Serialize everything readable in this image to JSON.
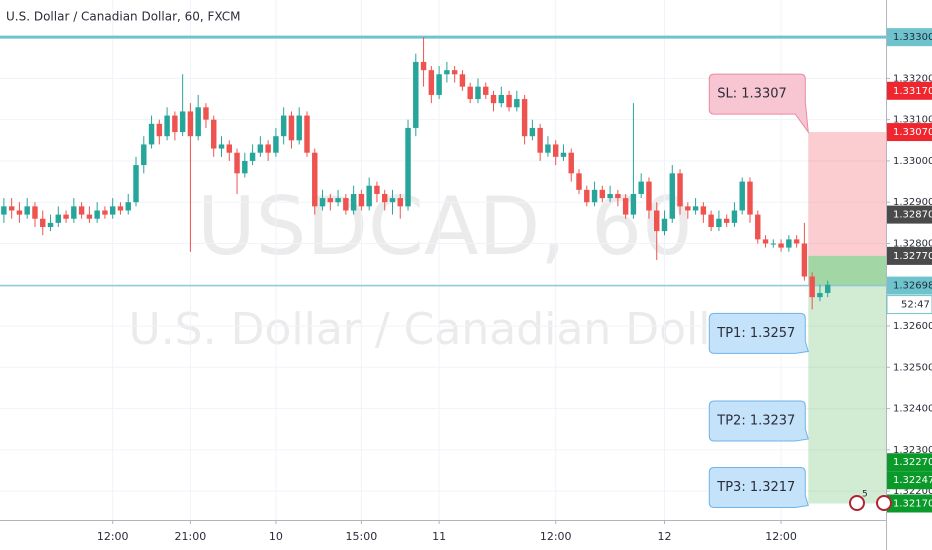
{
  "chart_data": {
    "type": "candlestick",
    "title": "U.S. Dollar / Canadian Dollar, 60, FXCM",
    "watermark": "USDCAD, 60",
    "watermark_subtitle": "U.S. Dollar / Canadian Dollar",
    "up_color": "#26a69a",
    "down_color": "#ef5350",
    "grid": true,
    "xlim": [
      -0.5,
      113.5
    ],
    "ylim": [
      1.3213,
      1.3339
    ],
    "xticks": [
      {
        "value": 14,
        "label": "12:00"
      },
      {
        "value": 24,
        "label": "21:00"
      },
      {
        "value": 35,
        "label": "10"
      },
      {
        "value": 46,
        "label": "15:00"
      },
      {
        "value": 56,
        "label": "11"
      },
      {
        "value": 71,
        "label": "12:00"
      },
      {
        "value": 85,
        "label": "12"
      },
      {
        "value": 100,
        "label": "12:00"
      }
    ],
    "yticks": [
      {
        "value": 1.333,
        "label": "1.33300"
      },
      {
        "value": 1.332,
        "label": "1.33200"
      },
      {
        "value": 1.331,
        "label": "1.33100"
      },
      {
        "value": 1.33,
        "label": "1.33000"
      },
      {
        "value": 1.329,
        "label": "1.32900"
      },
      {
        "value": 1.328,
        "label": "1.32800"
      },
      {
        "value": 1.327,
        "label": "1.32700"
      },
      {
        "value": 1.326,
        "label": "1.32600"
      },
      {
        "value": 1.325,
        "label": "1.32500"
      },
      {
        "value": 1.324,
        "label": "1.32400"
      },
      {
        "value": 1.323,
        "label": "1.32300"
      },
      {
        "value": 1.322,
        "label": "1.32200"
      }
    ],
    "open": [
      1.3287,
      1.3289,
      1.3288,
      1.3287,
      1.3289,
      1.3286,
      1.3284,
      1.3285,
      1.3287,
      1.3286,
      1.3289,
      1.3287,
      1.3286,
      1.3288,
      1.3287,
      1.3289,
      1.3288,
      1.329,
      1.3299,
      1.3304,
      1.3309,
      1.3306,
      1.3311,
      1.3307,
      1.3312,
      1.3306,
      1.3313,
      1.331,
      1.3303,
      1.3304,
      1.3302,
      1.3297,
      1.33,
      1.3302,
      1.3304,
      1.3302,
      1.3306,
      1.3311,
      1.3305,
      1.3311,
      1.3302,
      1.3289,
      1.3291,
      1.329,
      1.3291,
      1.3288,
      1.3292,
      1.3289,
      1.3294,
      1.3292,
      1.329,
      1.3291,
      1.3289,
      1.3308,
      1.3324,
      1.3322,
      1.3316,
      1.3321,
      1.3322,
      1.3321,
      1.3318,
      1.3315,
      1.3318,
      1.3316,
      1.3314,
      1.3316,
      1.3313,
      1.3315,
      1.3306,
      1.3308,
      1.3302,
      1.3304,
      1.3301,
      1.3302,
      1.3297,
      1.3293,
      1.329,
      1.3293,
      1.3291,
      1.3292,
      1.3291,
      1.3287,
      1.3292,
      1.3295,
      1.3288,
      1.3283,
      1.3286,
      1.3297,
      1.3289,
      1.3288,
      1.3289,
      1.3287,
      1.3284,
      1.3286,
      1.3285,
      1.3288,
      1.3295,
      1.3287,
      1.3281,
      1.328,
      1.328,
      1.3279,
      1.3281,
      1.328,
      1.3272,
      1.3267,
      1.3268
    ],
    "high": [
      1.3291,
      1.3291,
      1.329,
      1.3291,
      1.329,
      1.3288,
      1.3287,
      1.3289,
      1.3288,
      1.3291,
      1.329,
      1.3289,
      1.329,
      1.3289,
      1.3291,
      1.329,
      1.3292,
      1.3301,
      1.3306,
      1.3311,
      1.331,
      1.3313,
      1.3312,
      1.3321,
      1.3314,
      1.3316,
      1.3314,
      1.3311,
      1.3306,
      1.3305,
      1.3303,
      1.3302,
      1.3304,
      1.3306,
      1.3305,
      1.3308,
      1.3313,
      1.3312,
      1.3313,
      1.3312,
      1.3303,
      1.3293,
      1.3292,
      1.3293,
      1.3292,
      1.3294,
      1.3293,
      1.3296,
      1.3295,
      1.3293,
      1.3293,
      1.3292,
      1.331,
      1.3326,
      1.333,
      1.3323,
      1.3323,
      1.3324,
      1.3323,
      1.3322,
      1.3319,
      1.332,
      1.3319,
      1.3317,
      1.3318,
      1.3317,
      1.3317,
      1.3316,
      1.331,
      1.3309,
      1.3306,
      1.3305,
      1.3304,
      1.3303,
      1.3298,
      1.3294,
      1.3295,
      1.3294,
      1.3294,
      1.3293,
      1.3292,
      1.3314,
      1.3297,
      1.3296,
      1.329,
      1.3288,
      1.3299,
      1.3298,
      1.329,
      1.3291,
      1.329,
      1.3288,
      1.3288,
      1.3287,
      1.329,
      1.3296,
      1.3296,
      1.3288,
      1.3282,
      1.3281,
      1.3281,
      1.3282,
      1.3282,
      1.3285,
      1.3273,
      1.327,
      1.3271
    ],
    "low": [
      1.3285,
      1.3286,
      1.3285,
      1.3286,
      1.3284,
      1.3282,
      1.3283,
      1.3284,
      1.3285,
      1.3285,
      1.3286,
      1.3285,
      1.3285,
      1.3286,
      1.3286,
      1.3287,
      1.3287,
      1.3289,
      1.3297,
      1.3303,
      1.3304,
      1.3305,
      1.3305,
      1.3306,
      1.3278,
      1.3305,
      1.3308,
      1.3301,
      1.3301,
      1.33,
      1.3292,
      1.3296,
      1.3299,
      1.3301,
      1.33,
      1.3301,
      1.3304,
      1.3303,
      1.3304,
      1.3301,
      1.3287,
      1.3288,
      1.3288,
      1.3289,
      1.3287,
      1.3287,
      1.3288,
      1.3288,
      1.329,
      1.3288,
      1.3287,
      1.3286,
      1.3288,
      1.3306,
      1.3318,
      1.3314,
      1.3315,
      1.3319,
      1.3319,
      1.3317,
      1.3314,
      1.3314,
      1.3315,
      1.3312,
      1.3313,
      1.3312,
      1.3312,
      1.3304,
      1.3305,
      1.33,
      1.3301,
      1.3299,
      1.33,
      1.3295,
      1.3292,
      1.3289,
      1.3289,
      1.329,
      1.329,
      1.3289,
      1.3286,
      1.3286,
      1.3291,
      1.3286,
      1.3276,
      1.3282,
      1.3285,
      1.3287,
      1.3286,
      1.3287,
      1.3285,
      1.3283,
      1.3283,
      1.3284,
      1.3284,
      1.3287,
      1.3285,
      1.328,
      1.3279,
      1.3279,
      1.3278,
      1.3278,
      1.3279,
      1.3271,
      1.3264,
      1.3266,
      1.3267
    ],
    "close": [
      1.3289,
      1.3288,
      1.3287,
      1.3289,
      1.3286,
      1.3284,
      1.3285,
      1.3287,
      1.3286,
      1.3289,
      1.3287,
      1.3286,
      1.3288,
      1.3287,
      1.3289,
      1.3288,
      1.329,
      1.3299,
      1.3304,
      1.3309,
      1.3306,
      1.3311,
      1.3307,
      1.3312,
      1.3306,
      1.3313,
      1.331,
      1.3303,
      1.3304,
      1.3302,
      1.3297,
      1.33,
      1.3302,
      1.3304,
      1.3302,
      1.3306,
      1.3311,
      1.3305,
      1.3311,
      1.3302,
      1.3289,
      1.3291,
      1.329,
      1.3291,
      1.3288,
      1.3292,
      1.3289,
      1.3294,
      1.3292,
      1.329,
      1.3291,
      1.3289,
      1.3308,
      1.3324,
      1.3322,
      1.3316,
      1.3321,
      1.3322,
      1.3321,
      1.3318,
      1.3315,
      1.3318,
      1.3316,
      1.3314,
      1.3316,
      1.3313,
      1.3315,
      1.3306,
      1.3308,
      1.3302,
      1.3304,
      1.3301,
      1.3302,
      1.3297,
      1.3293,
      1.329,
      1.3293,
      1.3291,
      1.3292,
      1.3291,
      1.3287,
      1.3292,
      1.3295,
      1.3288,
      1.3283,
      1.3286,
      1.3297,
      1.3289,
      1.3288,
      1.3289,
      1.3287,
      1.3284,
      1.3286,
      1.3285,
      1.3288,
      1.3295,
      1.3287,
      1.3281,
      1.328,
      1.328,
      1.3279,
      1.3281,
      1.328,
      1.3272,
      1.3267,
      1.3268,
      1.327
    ],
    "horizontal_lines": [
      {
        "value": 1.333,
        "color": "#6ec3cc",
        "width": 3
      },
      {
        "value": 1.32698,
        "color": "#8fcbd6",
        "width": 1.5
      }
    ],
    "position": {
      "start": 103.5,
      "entry": 1.3277,
      "stop": 1.3307,
      "target": 1.3217,
      "current": 1.32698,
      "stop_color": "#f23645",
      "target_color": "#4caf50"
    },
    "annotations": [
      {
        "text": "SL: 1.3307",
        "value": 1.3307,
        "fill": "#f8c6d3",
        "stroke": "#e78aa3"
      },
      {
        "text": "TP1: 1.3257",
        "value": 1.3257,
        "fill": "#c5e2fb",
        "stroke": "#6fb3ea"
      },
      {
        "text": "TP2: 1.3237",
        "value": 1.3237,
        "fill": "#c5e2fb",
        "stroke": "#6fb3ea"
      },
      {
        "text": "TP3: 1.3217",
        "value": 1.3217,
        "fill": "#c5e2fb",
        "stroke": "#6fb3ea"
      }
    ],
    "price_labels": [
      {
        "value": 1.333,
        "label": "1.33300",
        "color": "#6ec3cc",
        "text_color": "#1f2d3a"
      },
      {
        "value": 1.3317,
        "label": "1.33170",
        "color": "#f0262f",
        "text_color": "#ffffff"
      },
      {
        "value": 1.3307,
        "label": "1.33070",
        "color": "#f0262f",
        "text_color": "#ffffff"
      },
      {
        "value": 1.3287,
        "label": "1.32870",
        "color": "#4a4a4a",
        "text_color": "#ffffff"
      },
      {
        "value": 1.3277,
        "label": "1.32770",
        "color": "#4a4a4a",
        "text_color": "#ffffff"
      },
      {
        "value": 1.32698,
        "label": "1.32698",
        "color": "#6ec3cc",
        "text_color": "#1f2d3a"
      },
      {
        "value": 1.3227,
        "label": "1.32270",
        "color": "#0a9a2a",
        "text_color": "#ffffff"
      },
      {
        "value": 1.32247,
        "label": "1.32247",
        "color": "#0a9a2a",
        "text_color": "#ffffff"
      },
      {
        "value": 1.3217,
        "label": "1.32170",
        "color": "#0a9a2a",
        "text_color": "#ffffff"
      }
    ],
    "countdown": "52:47",
    "events_badge": "5"
  }
}
